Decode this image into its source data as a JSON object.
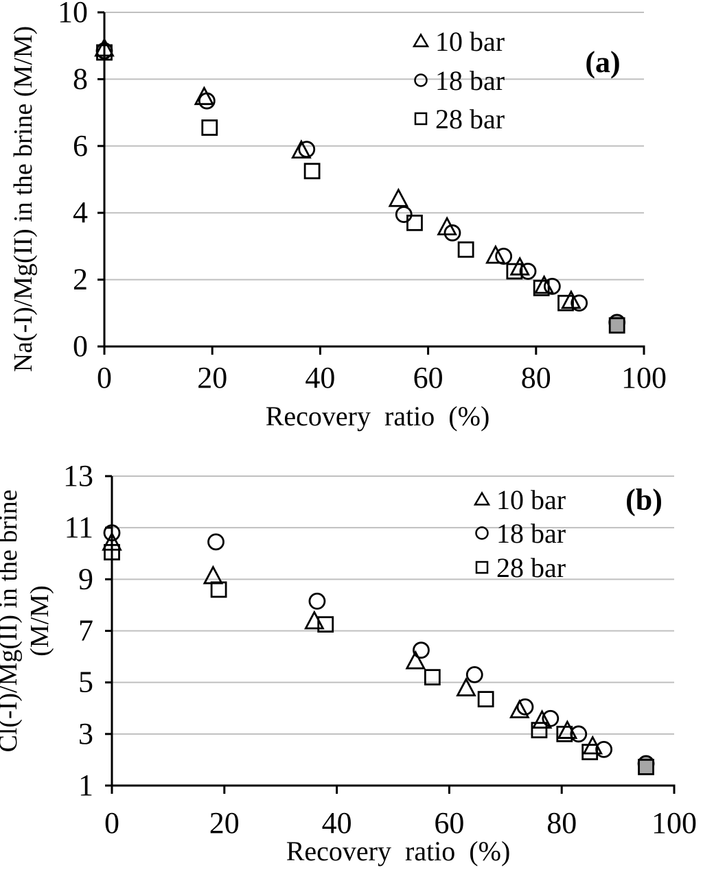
{
  "colors": {
    "background": "#ffffff",
    "marker_stroke": "#000000",
    "gridline": "#bfbfbf",
    "gray_fill": "#a6a6a6",
    "text": "#000000"
  },
  "chart_data": [
    {
      "id": "a",
      "type": "scatter",
      "panel_label": "(a)",
      "xlabel": "Recovery ratio (%)",
      "ylabel_lines": [
        "Na(-I)/Mg(II) in the brine (M/M)"
      ],
      "xlim": [
        0,
        100
      ],
      "ylim": [
        0,
        10
      ],
      "xticks": [
        0,
        20,
        40,
        60,
        80,
        100
      ],
      "yticks": [
        0,
        2,
        4,
        6,
        8,
        10
      ],
      "grid": "horizontal-gridlines",
      "legend_position": "upper-right-inside",
      "series": [
        {
          "name": "10 bar",
          "marker": "triangle",
          "points": [
            [
              0,
              8.9
            ],
            [
              18.5,
              7.45
            ],
            [
              36.5,
              5.85
            ],
            [
              54.5,
              4.4
            ],
            [
              63.5,
              3.55
            ],
            [
              72.5,
              2.7
            ],
            [
              77,
              2.35
            ],
            [
              81.5,
              1.8
            ],
            [
              86.5,
              1.35
            ]
          ]
        },
        {
          "name": "18 bar",
          "marker": "circle",
          "points": [
            [
              0,
              8.85
            ],
            [
              19,
              7.35
            ],
            [
              37.5,
              5.9
            ],
            [
              55.5,
              3.95
            ],
            [
              64.5,
              3.4
            ],
            [
              74,
              2.7
            ],
            [
              78.5,
              2.25
            ],
            [
              83,
              1.8
            ],
            [
              88,
              1.3
            ]
          ]
        },
        {
          "name": "28 bar",
          "marker": "square",
          "points": [
            [
              0,
              8.8
            ],
            [
              19.5,
              6.55
            ],
            [
              38.5,
              5.25
            ],
            [
              57.5,
              3.7
            ],
            [
              67,
              2.9
            ],
            [
              76,
              2.25
            ],
            [
              81,
              1.75
            ],
            [
              85.5,
              1.3
            ]
          ]
        }
      ],
      "final_brine_points": [
        {
          "marker": "circle",
          "x": 95,
          "y": 0.72
        },
        {
          "marker": "square",
          "x": 95,
          "y": 0.63
        }
      ]
    },
    {
      "id": "b",
      "type": "scatter",
      "panel_label": "(b)",
      "xlabel": "Recovery ratio (%)",
      "ylabel_lines": [
        "Cl(-I)/Mg(II) in the brine",
        "(M/M)"
      ],
      "xlim": [
        0,
        100
      ],
      "ylim": [
        1,
        13
      ],
      "xticks": [
        0,
        20,
        40,
        60,
        80,
        100
      ],
      "yticks": [
        1,
        3,
        5,
        7,
        9,
        11,
        13
      ],
      "grid": "horizontal-gridlines",
      "legend_position": "upper-right-inside",
      "series": [
        {
          "name": "10 bar",
          "marker": "triangle",
          "points": [
            [
              0,
              10.4
            ],
            [
              18,
              9.1
            ],
            [
              36,
              7.35
            ],
            [
              54,
              5.8
            ],
            [
              63,
              4.75
            ],
            [
              72.5,
              3.9
            ],
            [
              76.5,
              3.5
            ],
            [
              81,
              3.1
            ],
            [
              85.5,
              2.5
            ]
          ]
        },
        {
          "name": "18 bar",
          "marker": "circle",
          "points": [
            [
              0,
              10.8
            ],
            [
              18.5,
              10.45
            ],
            [
              36.5,
              8.15
            ],
            [
              55,
              6.25
            ],
            [
              64.5,
              5.3
            ],
            [
              73.5,
              4.05
            ],
            [
              78,
              3.6
            ],
            [
              83,
              3.0
            ],
            [
              87.5,
              2.4
            ]
          ]
        },
        {
          "name": "28 bar",
          "marker": "square",
          "points": [
            [
              0,
              10.05
            ],
            [
              19,
              8.6
            ],
            [
              38,
              7.25
            ],
            [
              57,
              5.2
            ],
            [
              66.5,
              4.35
            ],
            [
              76,
              3.15
            ],
            [
              80.5,
              3.0
            ],
            [
              85,
              2.3
            ]
          ]
        }
      ],
      "final_brine_points": [
        {
          "marker": "circle",
          "x": 95,
          "y": 1.85
        },
        {
          "marker": "square",
          "x": 95,
          "y": 1.72
        }
      ]
    }
  ]
}
